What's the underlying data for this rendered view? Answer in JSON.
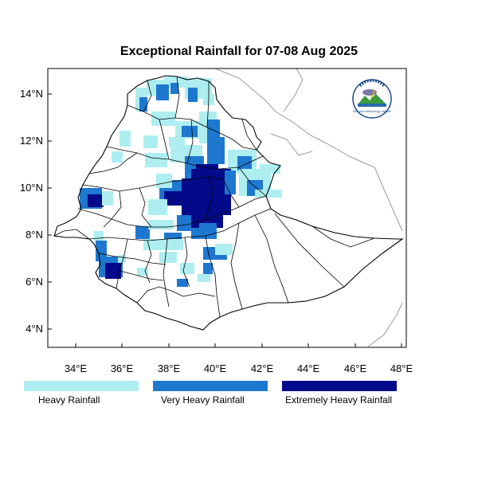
{
  "title": "Exceptional Rainfall for 07-08 Aug 2025",
  "axes": {
    "x_ticks": [
      "34°E",
      "36°E",
      "38°E",
      "40°E",
      "42°E",
      "44°E",
      "46°E",
      "48°E"
    ],
    "y_ticks": [
      "14°N",
      "12°N",
      "10°N",
      "8°N",
      "6°N",
      "4°N"
    ],
    "lon_range": [
      32.8,
      48.2
    ],
    "lat_range": [
      3.2,
      15.2
    ]
  },
  "legend": [
    {
      "label": "Heavy Rainfall",
      "color": "#aeeef0"
    },
    {
      "label": "Very Heavy Rainfall",
      "color": "#1e78d0"
    },
    {
      "label": "Extremely Heavy Rainfall",
      "color": "#020a8a"
    }
  ],
  "logo": {
    "icon": "meteorology-institute-logo-icon",
    "text": "Ethiopian Meteorology Institute"
  },
  "colors": {
    "border": "#000000",
    "neighbor_border": "#9a9a9a",
    "frame": "#000000"
  }
}
